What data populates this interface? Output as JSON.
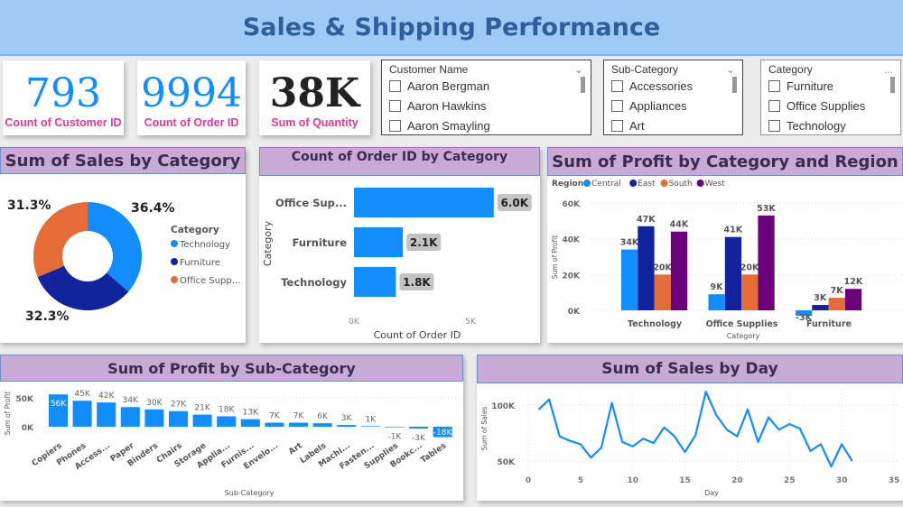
{
  "header": {
    "title": "Sales & Shipping Performance"
  },
  "kpis": [
    {
      "value": "793",
      "label": "Count of Customer ID",
      "color": "#118dff"
    },
    {
      "value": "9994",
      "label": "Count of Order ID",
      "color": "#118dff"
    },
    {
      "value": "38K",
      "label": "Sum of Quantity",
      "color": "#222222"
    }
  ],
  "slicers": [
    {
      "title": "Customer Name",
      "control": "chevron-down-icon",
      "items": [
        "Aaron Bergman",
        "Aaron Hawkins",
        "Aaron Smayling"
      ]
    },
    {
      "title": "Sub-Category",
      "control": "chevron-down-icon",
      "items": [
        "Accessories",
        "Appliances",
        "Art"
      ]
    },
    {
      "title": "Category",
      "control": "more-options-icon",
      "items": [
        "Furniture",
        "Office Supplies",
        "Technology"
      ]
    }
  ],
  "more_label": "...",
  "chevron": "⌄",
  "chart_data": [
    {
      "type": "pie",
      "variant": "donut",
      "title": "Sum of Sales by Category",
      "legend_title": "Category",
      "legend_position": "right",
      "slices": [
        {
          "label": "Technology",
          "display": "Technology",
          "value": 36.4,
          "value_label": "36.4%",
          "color": "#118dff"
        },
        {
          "label": "Furniture",
          "display": "Furniture",
          "value": 32.3,
          "value_label": "32.3%",
          "color": "#12239e"
        },
        {
          "label": "Office Supplies",
          "display": "Office Supp...",
          "value": 31.3,
          "value_label": "31.3%",
          "color": "#e66c37"
        }
      ]
    },
    {
      "type": "bar",
      "orientation": "horizontal",
      "title": "Count of Order ID by Category",
      "xlabel": "Count of Order ID",
      "ylabel": "Category",
      "categories": [
        "Office Sup...",
        "Furniture",
        "Technology"
      ],
      "values": [
        6000,
        2100,
        1800
      ],
      "value_labels": [
        "6.0K",
        "2.1K",
        "1.8K"
      ],
      "xticks": [
        "0K",
        "5K"
      ],
      "xlim": [
        0,
        5000
      ],
      "color": "#118dff"
    },
    {
      "type": "bar",
      "title": "Sum of Profit by Category and Region",
      "xlabel": "Category",
      "ylabel": "Sum of Profit",
      "legend_title": "Region",
      "legend_position": "top-left",
      "categories": [
        "Technology",
        "Office Supplies",
        "Furniture"
      ],
      "series": [
        {
          "name": "Central",
          "color": "#118dff",
          "values": [
            34,
            9,
            -3
          ],
          "labels": [
            "34K",
            "9K",
            "-3K"
          ]
        },
        {
          "name": "East",
          "color": "#12239e",
          "values": [
            47,
            41,
            3
          ],
          "labels": [
            "47K",
            "41K",
            "3K"
          ]
        },
        {
          "name": "South",
          "color": "#e66c37",
          "values": [
            20,
            20,
            7
          ],
          "labels": [
            "20K",
            "20K",
            "7K"
          ]
        },
        {
          "name": "West",
          "color": "#6b007b",
          "values": [
            44,
            53,
            12
          ],
          "labels": [
            "44K",
            "53K",
            "12K"
          ]
        }
      ],
      "yticks": [
        "0K",
        "20K",
        "40K",
        "60K"
      ],
      "ylim": [
        0,
        60
      ],
      "unit": "K",
      "grid": true
    },
    {
      "type": "bar",
      "title": "Sum of Profit by Sub-Category",
      "xlabel": "Sub-Category",
      "ylabel": "Sum of Profit",
      "unit": "K",
      "categories": [
        "Copiers",
        "Phones",
        "Access...",
        "Paper",
        "Binders",
        "Chairs",
        "Storage",
        "Applia...",
        "Furnis...",
        "Envelo...",
        "Art",
        "Labels",
        "Machi...",
        "Fasten...",
        "Supplies",
        "Bookc...",
        "Tables"
      ],
      "values": [
        56,
        45,
        42,
        34,
        30,
        27,
        21,
        18,
        13,
        7,
        7,
        6,
        3,
        1,
        -1,
        -3,
        -18
      ],
      "value_labels": [
        "56K",
        "45K",
        "42K",
        "34K",
        "30K",
        "27K",
        "21K",
        "18K",
        "13K",
        "7K",
        "7K",
        "6K",
        "3K",
        "1K",
        "-1K",
        "-3K",
        "-18K"
      ],
      "yticks": [
        "0K",
        "50K"
      ],
      "color": "#118dff",
      "grid": true
    },
    {
      "type": "line",
      "title": "Sum of Sales by Day",
      "xlabel": "Day",
      "ylabel": "Sum of Sales",
      "unit": "K",
      "x": [
        1,
        2,
        3,
        4,
        5,
        6,
        7,
        8,
        9,
        10,
        11,
        12,
        13,
        14,
        15,
        16,
        17,
        18,
        19,
        20,
        21,
        22,
        23,
        24,
        25,
        26,
        27,
        28,
        29,
        30,
        31
      ],
      "y": [
        96,
        105,
        72,
        68,
        65,
        53,
        62,
        102,
        67,
        63,
        70,
        66,
        80,
        72,
        58,
        73,
        112,
        91,
        78,
        72,
        96,
        67,
        89,
        78,
        83,
        79,
        59,
        65,
        45,
        65,
        50
      ],
      "xticks": [
        "0",
        "5",
        "10",
        "15",
        "20",
        "25",
        "30",
        "35"
      ],
      "yticks": [
        "50K",
        "100K"
      ],
      "xlim": [
        0,
        35
      ],
      "color": "#118dff",
      "grid": true
    }
  ]
}
